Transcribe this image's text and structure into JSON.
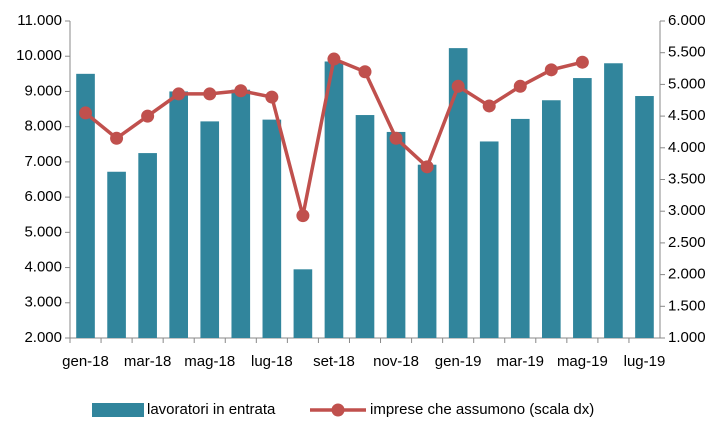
{
  "chart_data": {
    "type": "bar_line",
    "categories": [
      "gen-18",
      null,
      "mar-18",
      null,
      "mag-18",
      null,
      "lug-18",
      null,
      "set-18",
      null,
      "nov-18",
      null,
      "gen-19",
      null,
      "mar-19",
      null,
      "mag-19",
      null,
      "lug-19"
    ],
    "series": [
      {
        "name": "lavoratori in entrata",
        "type": "bar",
        "color": "#31859c",
        "values": [
          9500,
          6720,
          7250,
          9000,
          8150,
          9050,
          8200,
          3950,
          9850,
          8330,
          7850,
          6920,
          10230,
          7580,
          8220,
          8750,
          9380,
          9800,
          8870
        ]
      },
      {
        "name": "imprese che assumono (scala dx)",
        "type": "line",
        "axis": "y2",
        "color": "#c0504d",
        "values": [
          4550,
          4150,
          4500,
          4850,
          4850,
          4900,
          4800,
          2930,
          5400,
          5200,
          4150,
          3700,
          4970,
          4660,
          4970,
          5230,
          5350,
          null,
          null
        ]
      }
    ],
    "ylim": [
      2000,
      11000
    ],
    "yticks": [
      {
        "value": 2000,
        "label": "2.000"
      },
      {
        "value": 3000,
        "label": "3.000"
      },
      {
        "value": 4000,
        "label": "4.000"
      },
      {
        "value": 5000,
        "label": "5.000"
      },
      {
        "value": 6000,
        "label": "6.000"
      },
      {
        "value": 7000,
        "label": "7.000"
      },
      {
        "value": 8000,
        "label": "8.000"
      },
      {
        "value": 9000,
        "label": "9.000"
      },
      {
        "value": 10000,
        "label": "10.000"
      },
      {
        "value": 11000,
        "label": "11.000"
      }
    ],
    "y2lim": [
      1000,
      6000
    ],
    "y2ticks": [
      {
        "value": 1000,
        "label": "1.000"
      },
      {
        "value": 1500,
        "label": "1.500"
      },
      {
        "value": 2000,
        "label": "2.000"
      },
      {
        "value": 2500,
        "label": "2.500"
      },
      {
        "value": 3000,
        "label": "3.000"
      },
      {
        "value": 3500,
        "label": "3.500"
      },
      {
        "value": 4000,
        "label": "4.000"
      },
      {
        "value": 4500,
        "label": "4.500"
      },
      {
        "value": 5000,
        "label": "5.000"
      },
      {
        "value": 5500,
        "label": "5.500"
      },
      {
        "value": 6000,
        "label": "6.000"
      }
    ],
    "legend": "bottom"
  }
}
